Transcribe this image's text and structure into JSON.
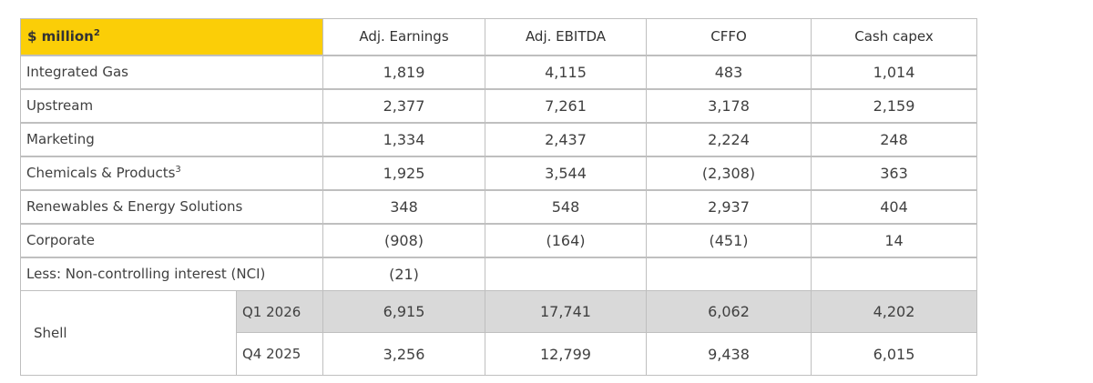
{
  "table": {
    "title": "$ million",
    "title_note": "2",
    "columns": [
      "Adj. Earnings",
      "Adj. EBITDA",
      "CFFO",
      "Cash capex"
    ],
    "rows": [
      {
        "label": "Integrated Gas",
        "note": "",
        "values": [
          "1,819",
          "4,115",
          "483",
          "1,014"
        ]
      },
      {
        "label": "Upstream",
        "note": "",
        "values": [
          "2,377",
          "7,261",
          "3,178",
          "2,159"
        ]
      },
      {
        "label": "Marketing",
        "note": "",
        "values": [
          "1,334",
          "2,437",
          "2,224",
          "248"
        ]
      },
      {
        "label": "Chemicals & Products",
        "note": "3",
        "values": [
          "1,925",
          "3,544",
          "(2,308)",
          "363"
        ]
      },
      {
        "label": "Renewables & Energy Solutions",
        "note": "",
        "values": [
          "348",
          "548",
          "2,937",
          "404"
        ]
      },
      {
        "label": "Corporate",
        "note": "",
        "values": [
          "(908)",
          "(164)",
          "(451)",
          "14"
        ]
      },
      {
        "label": "Less: Non-controlling interest (NCI)",
        "note": "",
        "values": [
          "(21)",
          "",
          "",
          ""
        ]
      }
    ],
    "shell": {
      "label": "Shell",
      "periods": [
        {
          "period": "Q1 2026",
          "values": [
            "6,915",
            "17,741",
            "6,062",
            "4,202"
          ]
        },
        {
          "period": "Q4 2025",
          "values": [
            "3,256",
            "12,799",
            "9,438",
            "6,015"
          ]
        }
      ]
    },
    "colors": {
      "title_bg": "#fbce07",
      "highlight_row_bg": "#d9d9d9",
      "border": "#bfbfbf"
    }
  }
}
